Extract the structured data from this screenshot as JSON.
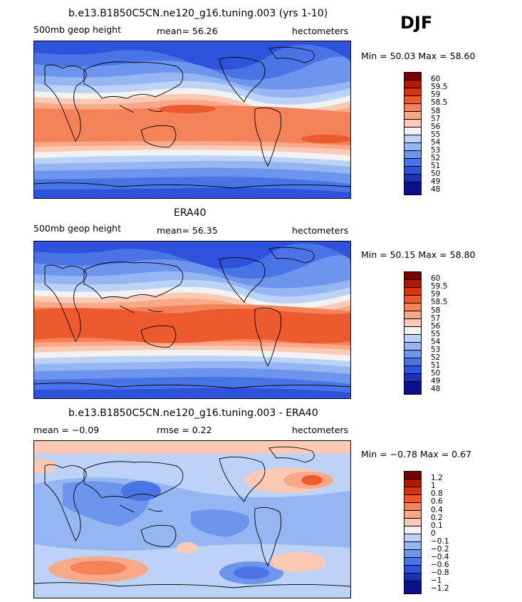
{
  "season": "DJF",
  "panels": [
    {
      "title": "b.e13.B1850C5CN.ne120_g16.tuning.003 (yrs 1-10)",
      "left_label": "500mb geop height",
      "center_label": "mean=  56.26",
      "right_label": "hectometers",
      "minmax": "Min =  50.03 Max =  58.60",
      "color_levels": [
        "60",
        "59.5",
        "59",
        "58.5",
        "58",
        "57",
        "56",
        "55",
        "54",
        "53",
        "52",
        "51",
        "50",
        "49",
        "48"
      ]
    },
    {
      "title": "ERA40",
      "left_label": "500mb geop height",
      "center_label": "mean=  56.35",
      "right_label": "hectometers",
      "minmax": "Min =  50.15 Max =  58.80",
      "color_levels": [
        "60",
        "59.5",
        "59",
        "58.5",
        "58",
        "57",
        "56",
        "55",
        "54",
        "53",
        "52",
        "51",
        "50",
        "49",
        "48"
      ]
    },
    {
      "title": "b.e13.B1850C5CN.ne120_g16.tuning.003 - ERA40",
      "left_label": "mean =  −0.09",
      "center_label": "rmse =   0.22",
      "right_label": "hectometers",
      "minmax": "Min =  −0.78 Max =   0.67",
      "color_levels": [
        "1.2",
        "1",
        "0.8",
        "0.6",
        "0.4",
        "0.2",
        "0.1",
        "0",
        "−0.1",
        "−0.2",
        "−0.4",
        "−0.6",
        "−0.8",
        "−1",
        "−1.2"
      ]
    }
  ],
  "colors": {
    "scale": [
      "#7a0000",
      "#b21a00",
      "#d8320e",
      "#ec5a2e",
      "#f5835a",
      "#f9a888",
      "#fccab4",
      "#f2f2f2",
      "#bcd3f7",
      "#95b6f3",
      "#6d95ee",
      "#4a74e6",
      "#2e52dc",
      "#1a31b8",
      "#0a0f8c"
    ]
  }
}
